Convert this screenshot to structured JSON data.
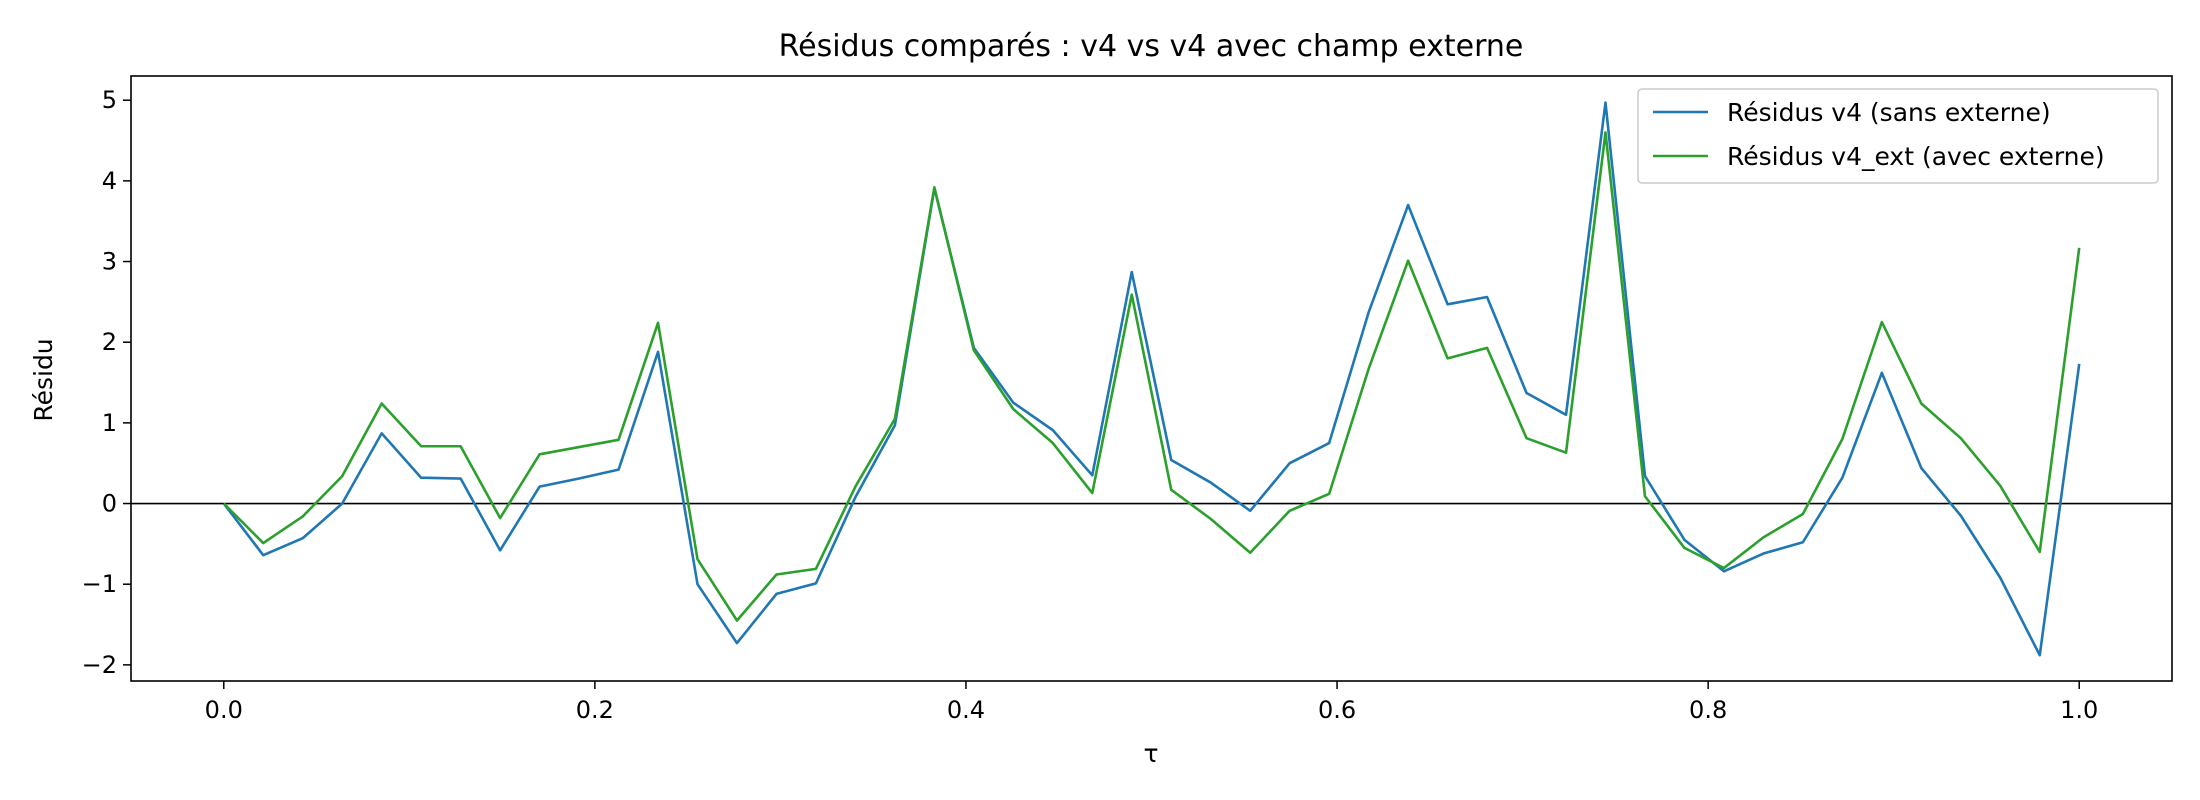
{
  "chart_data": {
    "type": "line",
    "title": "Résidus comparés : v4 vs v4 avec champ externe",
    "xlabel": "τ",
    "ylabel": "Résidu",
    "xlim": [
      -0.05,
      1.05
    ],
    "ylim": [
      -2.2,
      5.3
    ],
    "xticks": [
      0.0,
      0.2,
      0.4,
      0.6,
      0.8,
      1.0
    ],
    "xtick_labels": [
      "0.0",
      "0.2",
      "0.4",
      "0.6",
      "0.8",
      "1.0"
    ],
    "yticks": [
      -2,
      -1,
      0,
      1,
      2,
      3,
      4,
      5
    ],
    "ytick_labels": [
      "−2",
      "−1",
      "0",
      "1",
      "2",
      "3",
      "4",
      "5"
    ],
    "grid": false,
    "legend_position": "top-right",
    "zero_line": true,
    "series": [
      {
        "name": "Résidus v4 (sans externe)",
        "color": "#1f77b4",
        "values": [
          0.0,
          -0.64,
          -0.43,
          0.0,
          0.87,
          0.32,
          0.31,
          -0.58,
          0.21,
          0.31,
          0.42,
          1.88,
          -1.0,
          -1.73,
          -1.12,
          -0.99,
          0.08,
          0.97,
          3.91,
          1.93,
          1.25,
          0.91,
          0.35,
          2.87,
          0.54,
          0.26,
          -0.09,
          0.5,
          0.75,
          2.37,
          3.7,
          2.47,
          2.56,
          1.37,
          1.1,
          4.97,
          0.34,
          -0.45,
          -0.84,
          -0.62,
          -0.48,
          0.32,
          1.62,
          0.44,
          -0.15,
          -0.92,
          -1.88,
          1.73
        ]
      },
      {
        "name": "Résidus v4_ext (avec externe)",
        "color": "#2ca02c",
        "values": [
          0.0,
          -0.49,
          -0.16,
          0.34,
          1.24,
          0.71,
          0.71,
          -0.18,
          0.61,
          0.7,
          0.79,
          2.24,
          -0.69,
          -1.45,
          -0.88,
          -0.81,
          0.21,
          1.05,
          3.92,
          1.9,
          1.17,
          0.75,
          0.13,
          2.59,
          0.17,
          -0.19,
          -0.61,
          -0.09,
          0.12,
          1.67,
          3.01,
          1.8,
          1.93,
          0.81,
          0.63,
          4.6,
          0.09,
          -0.55,
          -0.8,
          -0.42,
          -0.13,
          0.8,
          2.25,
          1.24,
          0.81,
          0.22,
          -0.6,
          3.17
        ]
      }
    ]
  }
}
